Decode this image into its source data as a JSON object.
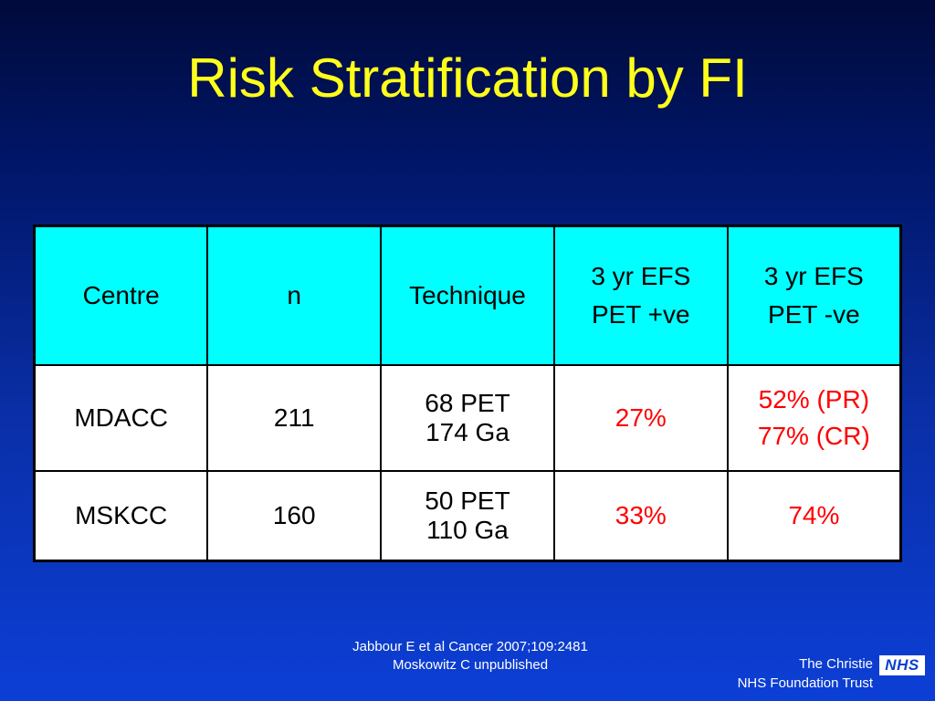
{
  "slide": {
    "title": "Risk Stratification by FI"
  },
  "table": {
    "headers": [
      [
        "Centre"
      ],
      [
        "n"
      ],
      [
        "Technique"
      ],
      [
        "3 yr EFS",
        "PET +ve"
      ],
      [
        "3 yr EFS",
        "PET -ve"
      ]
    ],
    "rows": [
      {
        "centre": "MDACC",
        "n": "211",
        "technique": [
          "68 PET",
          "174 Ga"
        ],
        "efs_pos": "27%",
        "efs_neg": [
          "52% (PR)",
          "77% (CR)"
        ]
      },
      {
        "centre": "MSKCC",
        "n": "160",
        "technique": [
          "50 PET",
          "110 Ga"
        ],
        "efs_pos": "33%",
        "efs_neg": [
          "74%"
        ]
      }
    ]
  },
  "references": [
    "Jabbour E et al Cancer 2007;109:2481",
    "Moskowitz C unpublished"
  ],
  "footer": {
    "org_line1": "The Christie",
    "org_line2": "NHS Foundation Trust",
    "logo_text": "NHS"
  },
  "colors": {
    "title": "#ffff1a",
    "header_bg": "#00ffff",
    "highlight": "#ff0000"
  }
}
